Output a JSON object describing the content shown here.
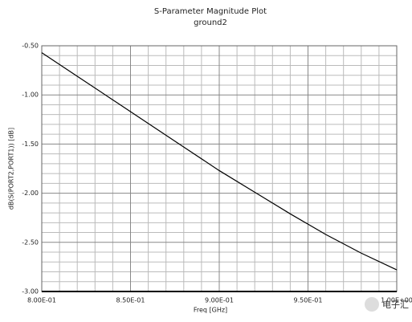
{
  "chart_data": {
    "type": "line",
    "title": "S-Parameter Magnitude Plot",
    "subtitle": "ground2",
    "x_label": "Freq [GHz]",
    "y_label": "dB(S(PORT2,PORT1)) [dB]",
    "watermark": "电子汇",
    "x": [
      0.8,
      0.82,
      0.84,
      0.86,
      0.88,
      0.9,
      0.92,
      0.94,
      0.96,
      0.98,
      1.0
    ],
    "series": [
      {
        "color": "#000000",
        "values": [
          -0.57,
          -0.81,
          -1.05,
          -1.29,
          -1.53,
          -1.77,
          -1.99,
          -2.21,
          -2.42,
          -2.61,
          -2.78
        ]
      }
    ],
    "xlim": [
      0.8,
      1.0
    ],
    "ylim": [
      -3.0,
      -0.5
    ],
    "xticks": [
      {
        "value": 0.8,
        "label": "8.00E-01"
      },
      {
        "value": 0.85,
        "label": "8.50E-01"
      },
      {
        "value": 0.9,
        "label": "9.00E-01"
      },
      {
        "value": 0.95,
        "label": "9.50E-01"
      },
      {
        "value": 1.0,
        "label": "1.00E+00"
      }
    ],
    "yticks": [
      {
        "value": -0.5,
        "label": "-0.50"
      },
      {
        "value": -1.0,
        "label": "-1.00"
      },
      {
        "value": -1.5,
        "label": "-1.50"
      },
      {
        "value": -2.0,
        "label": "-2.00"
      },
      {
        "value": -2.5,
        "label": "-2.50"
      },
      {
        "value": -3.0,
        "label": "-3.00"
      }
    ],
    "minor_xticks": [
      0.81,
      0.82,
      0.83,
      0.84,
      0.86,
      0.87,
      0.88,
      0.89,
      0.91,
      0.92,
      0.93,
      0.94,
      0.96,
      0.97,
      0.98,
      0.99
    ],
    "minor_yticks": [
      -0.6,
      -0.7,
      -0.8,
      -0.9,
      -1.1,
      -1.2,
      -1.3,
      -1.4,
      -1.6,
      -1.7,
      -1.8,
      -1.9,
      -2.1,
      -2.2,
      -2.3,
      -2.4,
      -2.6,
      -2.7,
      -2.8,
      -2.9
    ],
    "grid": true
  }
}
